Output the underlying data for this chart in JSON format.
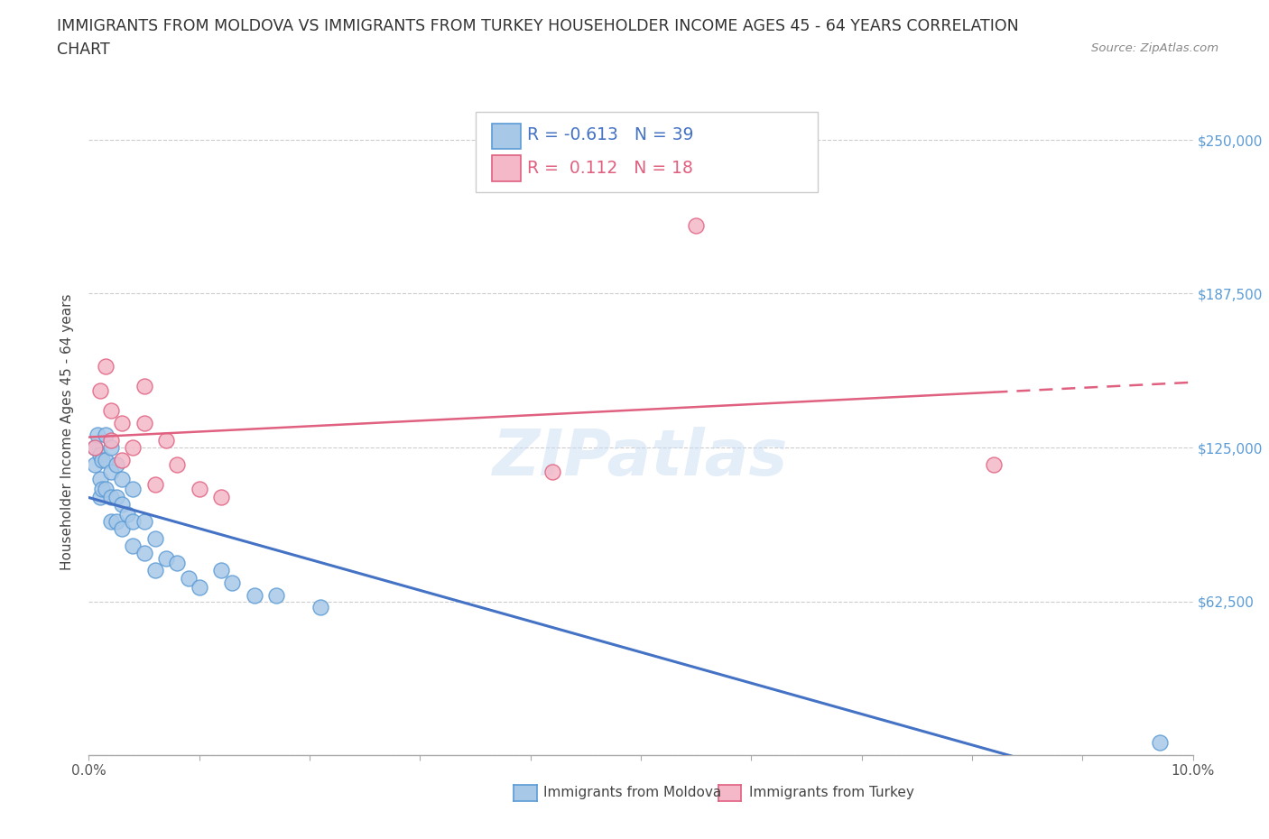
{
  "title_line1": "IMMIGRANTS FROM MOLDOVA VS IMMIGRANTS FROM TURKEY HOUSEHOLDER INCOME AGES 45 - 64 YEARS CORRELATION",
  "title_line2": "CHART",
  "source": "Source: ZipAtlas.com",
  "ylabel": "Householder Income Ages 45 - 64 years",
  "xlim": [
    0.0,
    0.1
  ],
  "ylim": [
    0,
    262500
  ],
  "yticks": [
    0,
    62500,
    125000,
    187500,
    250000
  ],
  "ytick_labels": [
    "",
    "$62,500",
    "$125,000",
    "$187,500",
    "$250,000"
  ],
  "xticks": [
    0.0,
    0.01,
    0.02,
    0.03,
    0.04,
    0.05,
    0.06,
    0.07,
    0.08,
    0.09,
    0.1
  ],
  "xtick_labels": [
    "0.0%",
    "",
    "",
    "",
    "",
    "",
    "",
    "",
    "",
    "",
    "10.0%"
  ],
  "moldova_color": "#a8c8e8",
  "moldova_edge": "#5b9bd5",
  "turkey_color": "#f4b8c8",
  "turkey_edge": "#e06080",
  "trend_moldova_color": "#4472c4",
  "trend_turkey_color": "#e06080",
  "R_moldova": -0.613,
  "N_moldova": 39,
  "R_turkey": 0.112,
  "N_turkey": 18,
  "moldova_x": [
    0.0005,
    0.0005,
    0.0008,
    0.001,
    0.001,
    0.001,
    0.0012,
    0.0012,
    0.0015,
    0.0015,
    0.0015,
    0.002,
    0.002,
    0.002,
    0.002,
    0.0025,
    0.0025,
    0.0025,
    0.003,
    0.003,
    0.003,
    0.0035,
    0.004,
    0.004,
    0.004,
    0.005,
    0.005,
    0.006,
    0.006,
    0.007,
    0.008,
    0.009,
    0.01,
    0.012,
    0.013,
    0.015,
    0.017,
    0.021,
    0.097
  ],
  "moldova_y": [
    125000,
    118000,
    130000,
    122000,
    112000,
    105000,
    120000,
    108000,
    130000,
    120000,
    108000,
    125000,
    115000,
    105000,
    95000,
    118000,
    105000,
    95000,
    112000,
    102000,
    92000,
    98000,
    108000,
    95000,
    85000,
    95000,
    82000,
    88000,
    75000,
    80000,
    78000,
    72000,
    68000,
    75000,
    70000,
    65000,
    65000,
    60000,
    5000
  ],
  "turkey_x": [
    0.0005,
    0.001,
    0.0015,
    0.002,
    0.002,
    0.003,
    0.003,
    0.004,
    0.005,
    0.005,
    0.006,
    0.007,
    0.008,
    0.01,
    0.012,
    0.042,
    0.055,
    0.082
  ],
  "turkey_y": [
    125000,
    148000,
    158000,
    140000,
    128000,
    135000,
    120000,
    125000,
    150000,
    135000,
    110000,
    128000,
    118000,
    108000,
    105000,
    115000,
    215000,
    118000
  ],
  "watermark": "ZIPatlas",
  "background_color": "#ffffff",
  "grid_color": "#cccccc",
  "ytick_color": "#5b9bd5",
  "legend_R_color": "#4472c4",
  "legend_N_color": "#4472c4"
}
